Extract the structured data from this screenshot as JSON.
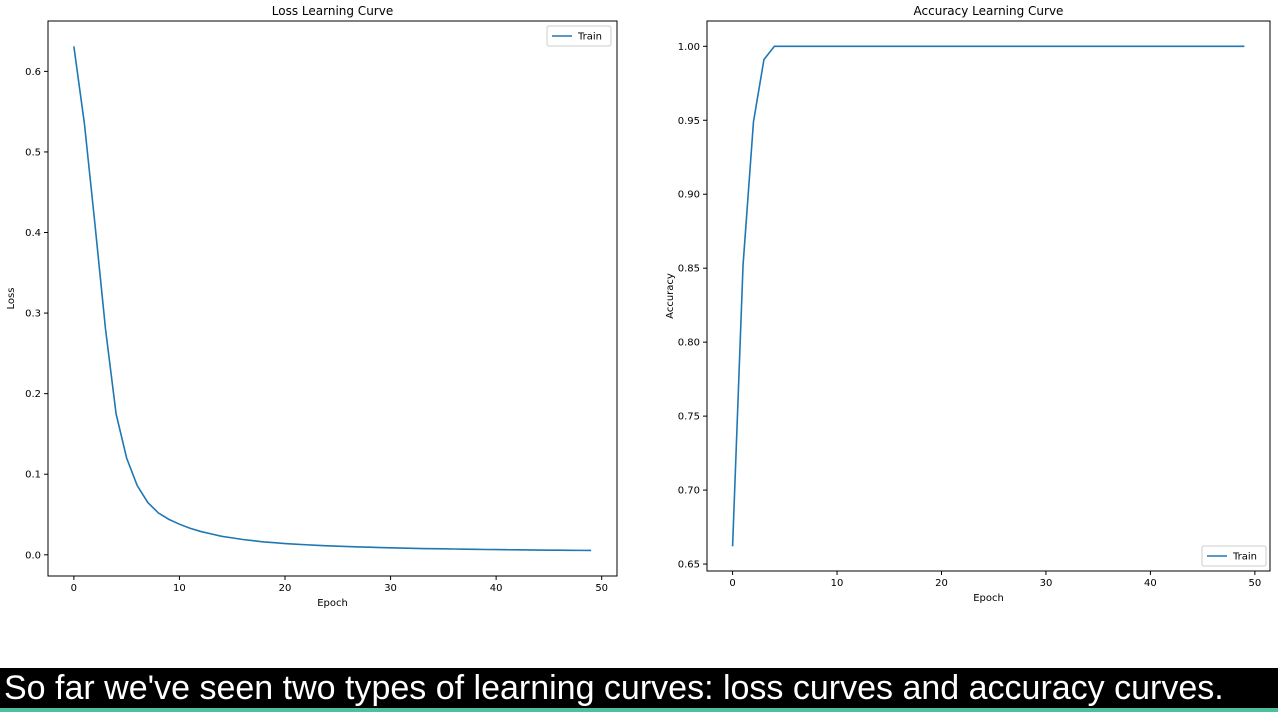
{
  "chart_data": [
    {
      "type": "line",
      "title": "Loss Learning Curve",
      "xlabel": "Epoch",
      "ylabel": "Loss",
      "xlim": [
        -2.45,
        51.45
      ],
      "ylim": [
        -0.0263,
        0.6625
      ],
      "xticks": [
        0,
        10,
        20,
        30,
        40,
        50
      ],
      "yticks": [
        0.0,
        0.1,
        0.2,
        0.3,
        0.4,
        0.5,
        0.6
      ],
      "ytick_labels": [
        "0.0",
        "0.1",
        "0.2",
        "0.3",
        "0.4",
        "0.5",
        "0.6"
      ],
      "legend": "top-right",
      "grid": false,
      "series": [
        {
          "name": "Train",
          "color": "#1f77b4",
          "x": [
            0,
            1,
            2,
            3,
            4,
            5,
            6,
            7,
            8,
            9,
            10,
            11,
            12,
            13,
            14,
            15,
            16,
            17,
            18,
            19,
            20,
            21,
            22,
            23,
            24,
            25,
            26,
            27,
            28,
            29,
            30,
            31,
            32,
            33,
            34,
            35,
            36,
            37,
            38,
            39,
            40,
            41,
            42,
            43,
            44,
            45,
            46,
            47,
            48,
            49
          ],
          "y": [
            0.631,
            0.535,
            0.41,
            0.28,
            0.175,
            0.12,
            0.086,
            0.065,
            0.052,
            0.044,
            0.038,
            0.033,
            0.029,
            0.026,
            0.023,
            0.021,
            0.019,
            0.0175,
            0.016,
            0.015,
            0.014,
            0.0132,
            0.0125,
            0.0118,
            0.0112,
            0.0107,
            0.0102,
            0.0098,
            0.0094,
            0.009,
            0.0087,
            0.0084,
            0.0081,
            0.0078,
            0.0076,
            0.0074,
            0.0072,
            0.007,
            0.0068,
            0.0066,
            0.0065,
            0.0063,
            0.0062,
            0.006,
            0.0059,
            0.0058,
            0.0057,
            0.0056,
            0.0055,
            0.0054
          ]
        }
      ]
    },
    {
      "type": "line",
      "title": "Accuracy Learning Curve",
      "xlabel": "Epoch",
      "ylabel": "Accuracy",
      "xlim": [
        -2.45,
        51.45
      ],
      "ylim": [
        0.6453,
        1.0171
      ],
      "xticks": [
        0,
        10,
        20,
        30,
        40,
        50
      ],
      "yticks": [
        0.65,
        0.7,
        0.75,
        0.8,
        0.85,
        0.9,
        0.95,
        1.0
      ],
      "ytick_labels": [
        "0.65",
        "0.70",
        "0.75",
        "0.80",
        "0.85",
        "0.90",
        "0.95",
        "1.00"
      ],
      "legend": "bottom-right",
      "grid": false,
      "series": [
        {
          "name": "Train",
          "color": "#1f77b4",
          "x": [
            0,
            1,
            2,
            3,
            4,
            5,
            6,
            7,
            8,
            9,
            10,
            11,
            12,
            13,
            14,
            15,
            16,
            17,
            18,
            19,
            20,
            21,
            22,
            23,
            24,
            25,
            26,
            27,
            28,
            29,
            30,
            31,
            32,
            33,
            34,
            35,
            36,
            37,
            38,
            39,
            40,
            41,
            42,
            43,
            44,
            45,
            46,
            47,
            48,
            49
          ],
          "y": [
            0.662,
            0.852,
            0.949,
            0.991,
            1.0,
            1.0,
            1.0,
            1.0,
            1.0,
            1.0,
            1.0,
            1.0,
            1.0,
            1.0,
            1.0,
            1.0,
            1.0,
            1.0,
            1.0,
            1.0,
            1.0,
            1.0,
            1.0,
            1.0,
            1.0,
            1.0,
            1.0,
            1.0,
            1.0,
            1.0,
            1.0,
            1.0,
            1.0,
            1.0,
            1.0,
            1.0,
            1.0,
            1.0,
            1.0,
            1.0,
            1.0,
            1.0,
            1.0,
            1.0,
            1.0,
            1.0,
            1.0,
            1.0,
            1.0,
            1.0
          ]
        }
      ]
    }
  ],
  "caption": {
    "text": "So far we've seen two types of learning curves: loss curves and accuracy curves."
  }
}
